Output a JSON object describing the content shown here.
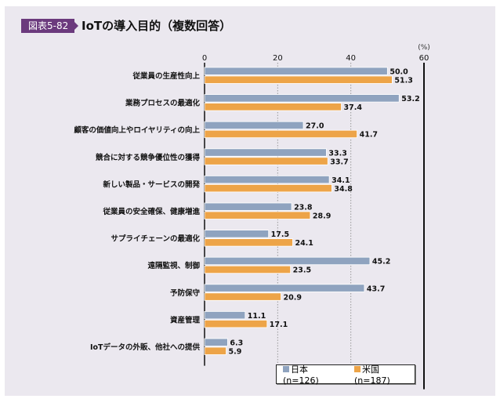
{
  "header": {
    "badge": "図表5-82",
    "title": "IoTの導入目的（複数回答）"
  },
  "colors": {
    "japan": "#8fa3bf",
    "us": "#eda448",
    "background": "#ebe8ef",
    "badge": "#6b3a7d"
  },
  "chart_data": {
    "type": "bar",
    "orientation": "horizontal",
    "title": "IoTの導入目的（複数回答）",
    "unit": "(%)",
    "xlim": [
      0,
      60
    ],
    "ticks": [
      0,
      20,
      40,
      60
    ],
    "categories": [
      "従業員の生産性向上",
      "業務プロセスの最適化",
      "顧客の価値向上やロイヤリティの向上",
      "競合に対する競争優位性の獲得",
      "新しい製品・サービスの開発",
      "従業員の安全確保、健康増進",
      "サプライチェーンの最適化",
      "遠隔監視、制御",
      "予防保守",
      "資産管理",
      "IoTデータの外販、他社への提供"
    ],
    "series": [
      {
        "name": "日本 (n=126)",
        "values": [
          50.0,
          53.2,
          27.0,
          33.3,
          34.1,
          23.8,
          17.5,
          45.2,
          43.7,
          11.1,
          6.3
        ]
      },
      {
        "name": "米国 (n=187)",
        "values": [
          51.3,
          37.4,
          41.7,
          33.7,
          34.8,
          28.9,
          24.1,
          23.5,
          20.9,
          17.1,
          5.9
        ]
      }
    ],
    "legend_position": "bottom-right",
    "grid": true
  }
}
